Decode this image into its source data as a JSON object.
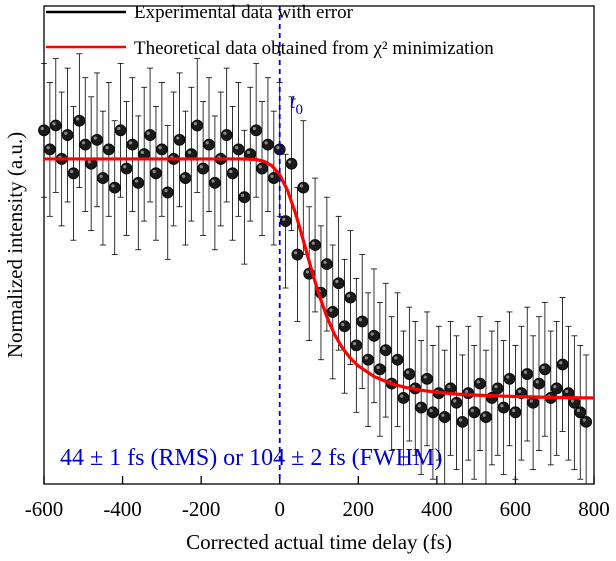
{
  "chart_data": {
    "type": "scatter",
    "title": "",
    "xlabel": "Corrected actual time delay (fs)",
    "ylabel": "Normalized intensity (a.u.)",
    "xlim": [
      -600,
      800
    ],
    "ylim": [
      0,
      1
    ],
    "x_ticks": [
      "-600",
      "-400",
      "-200",
      "0",
      "200",
      "400",
      "600",
      "800"
    ],
    "grid": false,
    "legend_position": "top",
    "series": [
      {
        "name": "Experimental data with error",
        "kind": "scatter-with-errorbars",
        "color": "#000000",
        "x": [
          -600,
          -585,
          -570,
          -555,
          -540,
          -525,
          -510,
          -495,
          -480,
          -465,
          -450,
          -435,
          -420,
          -405,
          -390,
          -375,
          -360,
          -345,
          -330,
          -315,
          -300,
          -285,
          -270,
          -255,
          -240,
          -225,
          -210,
          -195,
          -180,
          -165,
          -150,
          -135,
          -120,
          -105,
          -90,
          -75,
          -60,
          -45,
          -30,
          -15,
          0,
          15,
          30,
          45,
          60,
          75,
          90,
          105,
          120,
          135,
          150,
          165,
          180,
          195,
          210,
          225,
          240,
          255,
          270,
          285,
          300,
          315,
          330,
          345,
          360,
          375,
          390,
          405,
          420,
          435,
          450,
          465,
          480,
          495,
          510,
          525,
          540,
          555,
          570,
          585,
          600,
          615,
          630,
          645,
          660,
          675,
          690,
          705,
          720,
          735,
          750,
          765,
          780
        ],
        "y": [
          0.74,
          0.7,
          0.75,
          0.68,
          0.73,
          0.65,
          0.76,
          0.71,
          0.67,
          0.72,
          0.64,
          0.7,
          0.62,
          0.74,
          0.66,
          0.71,
          0.63,
          0.69,
          0.73,
          0.65,
          0.7,
          0.61,
          0.68,
          0.72,
          0.64,
          0.69,
          0.75,
          0.66,
          0.71,
          0.63,
          0.68,
          0.73,
          0.65,
          0.7,
          0.6,
          0.69,
          0.74,
          0.66,
          0.71,
          0.64,
          0.7,
          0.55,
          0.67,
          0.48,
          0.62,
          0.44,
          0.5,
          0.4,
          0.46,
          0.36,
          0.42,
          0.33,
          0.39,
          0.29,
          0.34,
          0.26,
          0.31,
          0.24,
          0.28,
          0.21,
          0.26,
          0.18,
          0.23,
          0.2,
          0.16,
          0.22,
          0.15,
          0.19,
          0.14,
          0.2,
          0.17,
          0.13,
          0.19,
          0.15,
          0.21,
          0.14,
          0.18,
          0.2,
          0.16,
          0.22,
          0.15,
          0.19,
          0.23,
          0.17,
          0.21,
          0.24,
          0.18,
          0.2,
          0.25,
          0.19,
          0.17,
          0.15,
          0.13
        ],
        "yerr": 0.14
      },
      {
        "name": "Theoretical data obtained from χ² minimization",
        "kind": "line",
        "color": "#ff0000",
        "x": [
          -600,
          -500,
          -400,
          -300,
          -200,
          -100,
          -60,
          -40,
          -20,
          0,
          20,
          40,
          60,
          80,
          100,
          120,
          140,
          160,
          180,
          200,
          240,
          280,
          320,
          360,
          400,
          450,
          500,
          600,
          700,
          800
        ],
        "y": [
          0.68,
          0.68,
          0.68,
          0.68,
          0.68,
          0.68,
          0.679,
          0.675,
          0.666,
          0.647,
          0.614,
          0.567,
          0.51,
          0.451,
          0.396,
          0.35,
          0.312,
          0.284,
          0.263,
          0.247,
          0.225,
          0.211,
          0.202,
          0.196,
          0.192,
          0.188,
          0.186,
          0.183,
          0.181,
          0.18
        ]
      }
    ],
    "vline": {
      "x": 0,
      "label": "t",
      "label_sub": "0",
      "color": "#0000cc"
    },
    "annotation": {
      "text": "44 ± 1 fs (RMS) or 104 ± 2 fs (FWHM)",
      "color": "#0000cc"
    }
  }
}
